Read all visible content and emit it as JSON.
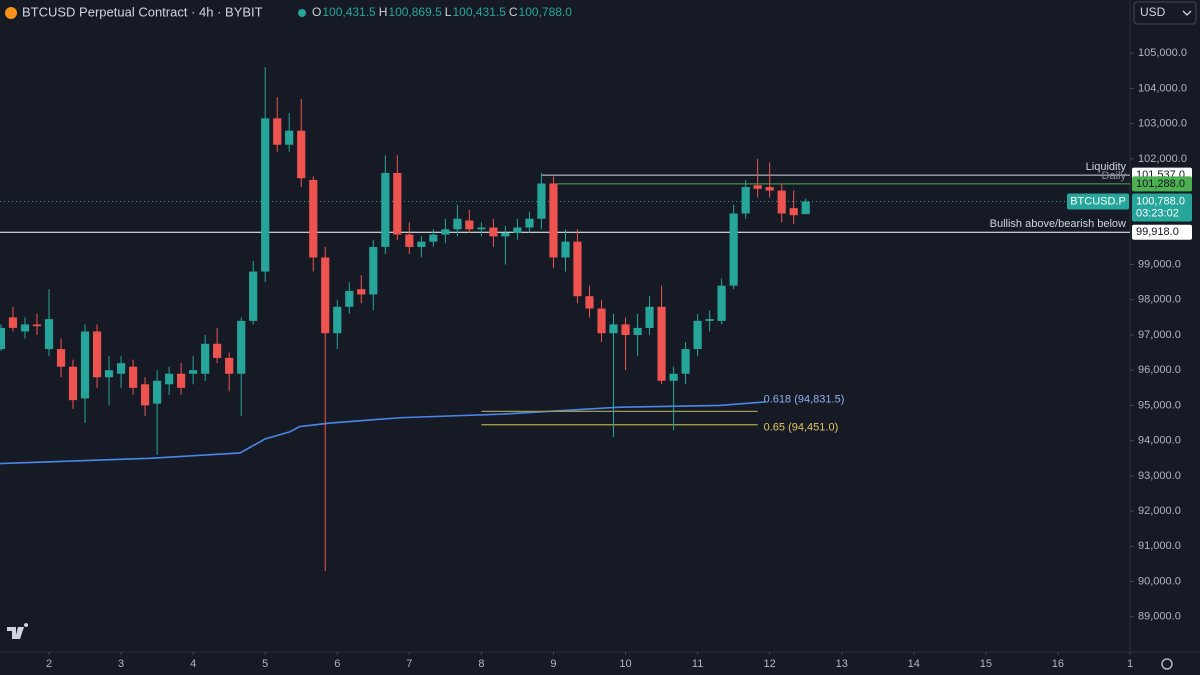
{
  "chart_data": {
    "type": "candlestick",
    "title": "BTCUSD Perpetual Contract · 4h · BYBIT",
    "ohlc_header": [
      {
        "key": "O",
        "text": "100,431.5"
      },
      {
        "key": "H",
        "text": "100,869.5"
      },
      {
        "key": "L",
        "text": "100,431.5"
      },
      {
        "key": "C",
        "text": "100,788.0"
      }
    ],
    "currency": "USD",
    "up_color": "#26a69a",
    "down_color": "#ef5350",
    "x": [
      1.333,
      1.5,
      1.667,
      1.833,
      2.0,
      2.167,
      2.333,
      2.5,
      2.667,
      2.833,
      3.0,
      3.167,
      3.333,
      3.5,
      3.667,
      3.833,
      4.0,
      4.167,
      4.333,
      4.5,
      4.667,
      4.833,
      5.0,
      5.167,
      5.333,
      5.5,
      5.667,
      5.833,
      6.0,
      6.167,
      6.333,
      6.5,
      6.667,
      6.833,
      7.0,
      7.167,
      7.333,
      7.5,
      7.667,
      7.833,
      8.0,
      8.167,
      8.333,
      8.5,
      8.667,
      8.833,
      9.0,
      9.167,
      9.333,
      9.5,
      9.667,
      9.833,
      10.0,
      10.167,
      10.333,
      10.5,
      10.667,
      10.833,
      11.0,
      11.167,
      11.333,
      11.5,
      11.667,
      11.833,
      12.0,
      12.167,
      12.333,
      12.5
    ],
    "open": [
      96600,
      97500,
      97100,
      97300,
      96600,
      96600,
      96100,
      95200,
      97100,
      95800,
      95900,
      96100,
      95600,
      95050,
      95600,
      95900,
      95900,
      95900,
      96750,
      96350,
      95900,
      97400,
      98800,
      103150,
      102400,
      102800,
      101400,
      99200,
      97050,
      97800,
      98300,
      98150,
      99500,
      101600,
      99850,
      99500,
      99650,
      99850,
      100000,
      100250,
      100000,
      100050,
      99800,
      99900,
      100050,
      100300,
      101300,
      99200,
      99650,
      98100,
      97750,
      97050,
      97300,
      97000,
      97200,
      97800,
      95700,
      95900,
      96600,
      97400,
      97400,
      98400,
      100450,
      101250,
      101200,
      101100,
      100600,
      100431.5
    ],
    "high": [
      97300,
      97800,
      97500,
      97600,
      98300,
      96900,
      96300,
      97300,
      97300,
      96400,
      96400,
      96300,
      95800,
      96000,
      96100,
      96200,
      96400,
      97000,
      97200,
      96500,
      97500,
      99100,
      104600,
      103750,
      103300,
      103700,
      101500,
      99500,
      98000,
      98500,
      98700,
      99700,
      102100,
      102100,
      100200,
      99800,
      100000,
      100300,
      100700,
      100550,
      100200,
      100300,
      100100,
      100300,
      100500,
      101600,
      101500,
      100000,
      100000,
      98400,
      98000,
      97600,
      97500,
      97600,
      98100,
      98400,
      96100,
      96800,
      97600,
      97700,
      98600,
      100700,
      101400,
      102000,
      101900,
      101300,
      101100,
      100869.5
    ],
    "low": [
      96550,
      97100,
      96900,
      97000,
      96400,
      95800,
      94900,
      94500,
      95500,
      95000,
      95500,
      95300,
      94700,
      93600,
      95300,
      95300,
      95600,
      95700,
      96200,
      95400,
      94700,
      97300,
      98500,
      102200,
      102200,
      101200,
      98800,
      90300,
      96600,
      97600,
      97900,
      97700,
      99300,
      99700,
      99300,
      99200,
      99500,
      99600,
      99800,
      99900,
      99800,
      99500,
      99000,
      99700,
      99900,
      100000,
      98900,
      98800,
      97900,
      97500,
      96800,
      94100,
      96000,
      96400,
      97000,
      95600,
      94300,
      95600,
      96400,
      97100,
      97300,
      98300,
      100300,
      100900,
      100900,
      100200,
      100150,
      100431.5
    ],
    "close": [
      97200,
      97200,
      97300,
      97250,
      97450,
      96100,
      95150,
      97100,
      95800,
      96000,
      96200,
      95500,
      95000,
      95700,
      95900,
      95500,
      96000,
      96750,
      96350,
      95900,
      97400,
      98800,
      103150,
      102400,
      102800,
      101450,
      99200,
      97050,
      97800,
      98250,
      98150,
      99500,
      101600,
      99850,
      99500,
      99650,
      99850,
      100000,
      100300,
      100000,
      100050,
      99800,
      99900,
      100050,
      100300,
      101300,
      99200,
      99650,
      98100,
      97750,
      97050,
      97300,
      97000,
      97200,
      97800,
      95700,
      95900,
      96600,
      97400,
      97450,
      98400,
      100450,
      101200,
      101150,
      101100,
      100450,
      100400,
      100788
    ],
    "lines": [
      {
        "color": "#4a86e8",
        "x": [
          1.32,
          3.4,
          4.65,
          5.0,
          5.34,
          5.48,
          5.9,
          6.87,
          8.26,
          9.09,
          9.92,
          11.31,
          11.94
        ],
        "values": [
          93350,
          93500,
          93650,
          94050,
          94250,
          94400,
          94500,
          94650,
          94750,
          94850,
          94950,
          95000,
          95100
        ]
      }
    ],
    "fib_levels": [
      {
        "label": "0.618 (94,831.5)",
        "value": 94831.5,
        "x_start": 8.0,
        "x_end": 11.833,
        "line_color": "#9c9a5a",
        "label_color": "#8fb0f0"
      },
      {
        "label": "0.65 (94,451.0)",
        "value": 94451,
        "x_start": 8.0,
        "x_end": 11.833,
        "line_color": "#b5a642",
        "label_color": "#e3c565"
      }
    ],
    "levels": [
      {
        "label": "Liquidity",
        "value": 101537,
        "value_label": "101,537.0",
        "x_start": 8.833,
        "color": "#d1d4dc",
        "tag_bg": "#ffffff",
        "tag_fg": "#131722"
      },
      {
        "label": "Daily",
        "value": 101288,
        "value_label": "101,288.0",
        "x_start": 9.0,
        "color": "#4caf50",
        "tag_bg": "#4caf50",
        "tag_fg": "#131722"
      },
      {
        "label": "Bullish above/bearish below",
        "value": 99918,
        "value_label": "99,918.0",
        "x_start": 1.32,
        "color": "#ffffff",
        "tag_bg": "#ffffff",
        "tag_fg": "#131722"
      }
    ],
    "last_price": {
      "symbol": "BTCUSD.P",
      "value": 100788,
      "value_label": "100,788.0",
      "countdown": "03:23:02",
      "color": "#26a69a"
    },
    "xlim": [
      1.32,
      17
    ],
    "xticks": [
      2,
      3,
      4,
      5,
      6,
      7,
      8,
      9,
      10,
      11,
      12,
      13,
      14,
      15,
      16,
      {
        "value": 17,
        "label": "1"
      }
    ],
    "ylim": [
      88000,
      105800
    ],
    "yticks": [
      {
        "value": 89000,
        "label": "89,000.0"
      },
      {
        "value": 90000,
        "label": "90,000.0"
      },
      {
        "value": 91000,
        "label": "91,000.0"
      },
      {
        "value": 92000,
        "label": "92,000.0"
      },
      {
        "value": 93000,
        "label": "93,000.0"
      },
      {
        "value": 94000,
        "label": "94,000.0"
      },
      {
        "value": 95000,
        "label": "95,000.0"
      },
      {
        "value": 96000,
        "label": "96,000.0"
      },
      {
        "value": 97000,
        "label": "97,000.0"
      },
      {
        "value": 98000,
        "label": "98,000.0"
      },
      {
        "value": 99000,
        "label": "99,000.0"
      },
      {
        "value": 102000,
        "label": "102,000.0"
      },
      {
        "value": 103000,
        "label": "103,000.0"
      },
      {
        "value": 104000,
        "label": "104,000.0"
      },
      {
        "value": 105000,
        "label": "105,000.0"
      }
    ]
  }
}
